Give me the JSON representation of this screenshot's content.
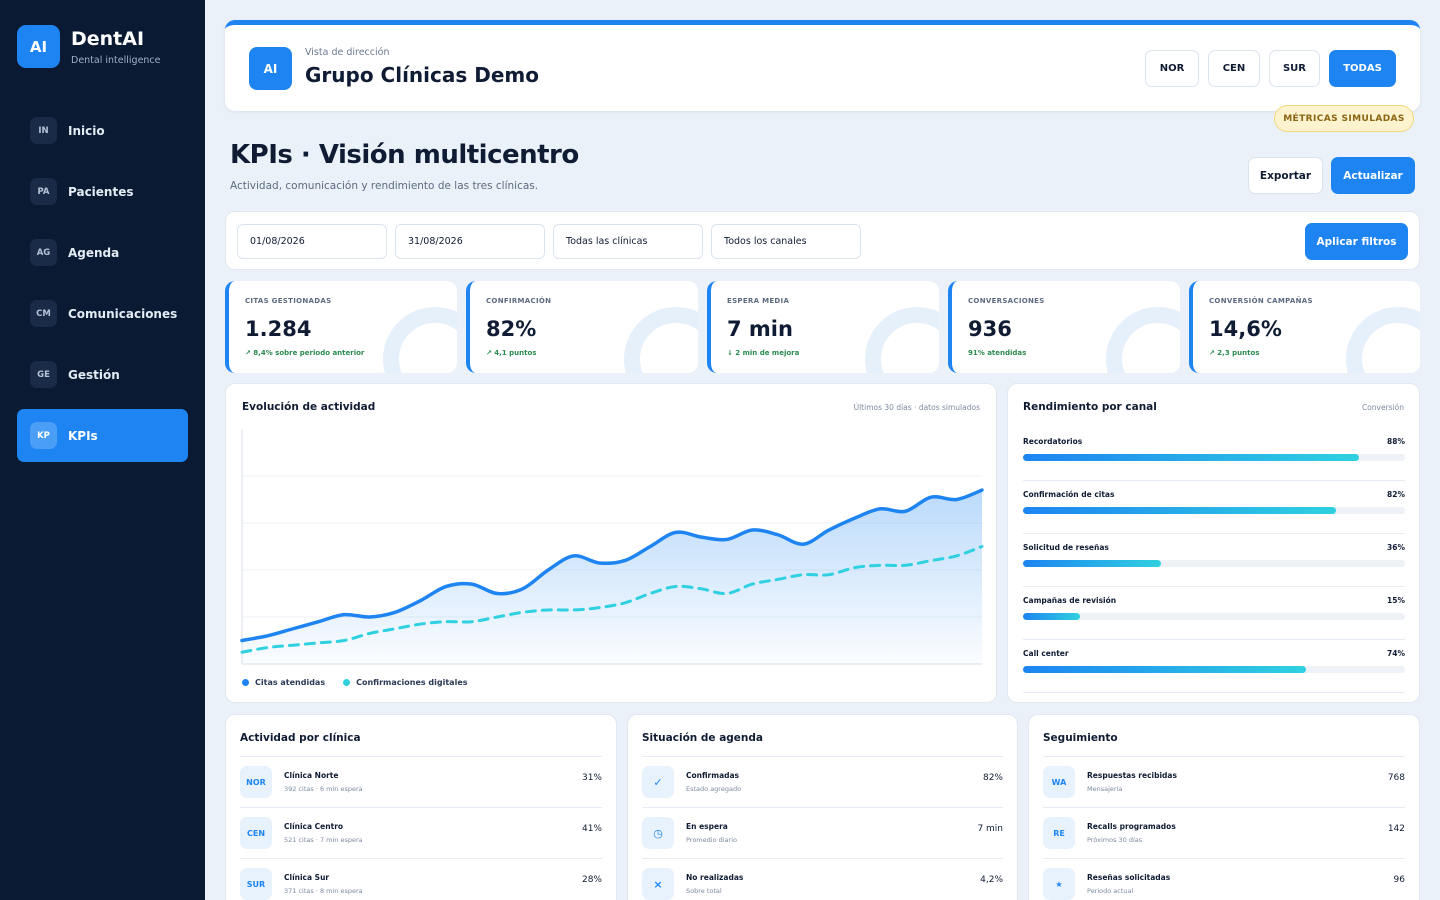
{
  "brand": {
    "logo": "AI",
    "name": "DentAI",
    "tagline": "Dental intelligence"
  },
  "nav": [
    {
      "code": "IN",
      "label": "Inicio"
    },
    {
      "code": "PA",
      "label": "Pacientes"
    },
    {
      "code": "AG",
      "label": "Agenda"
    },
    {
      "code": "CM",
      "label": "Comunicaciones"
    },
    {
      "code": "GE",
      "label": "Gestión"
    },
    {
      "code": "KP",
      "label": "KPIs",
      "active": true
    }
  ],
  "header": {
    "logo": "AI",
    "subtitle": "Vista de dirección",
    "title": "Grupo Clínicas Demo",
    "regions": [
      "NOR",
      "CEN",
      "SUR",
      "TODAS"
    ],
    "active_region": "TODAS",
    "sim_badge": "MÉTRICAS SIMULADAS"
  },
  "page": {
    "title": "KPIs · Visión multicentro",
    "subtitle": "Actividad, comunicación y rendimiento de las tres clínicas.",
    "export_label": "Exportar",
    "refresh_label": "Actualizar"
  },
  "filters": {
    "date_from": "01/08/2026",
    "date_to": "31/08/2026",
    "clinic": "Todas las clínicas",
    "channel": "Todos los canales",
    "apply_label": "Aplicar filtros"
  },
  "kpis": [
    {
      "label": "CITAS GESTIONADAS",
      "value": "1.284",
      "delta": "↗ 8,4% sobre periodo anterior"
    },
    {
      "label": "CONFIRMACIÓN",
      "value": "82%",
      "delta": "↗ 4,1 puntos"
    },
    {
      "label": "ESPERA MEDIA",
      "value": "7 min",
      "delta": "↓ 2 min de mejora"
    },
    {
      "label": "CONVERSACIONES",
      "value": "936",
      "delta": "91% atendidas"
    },
    {
      "label": "CONVERSIÓN CAMPAÑAS",
      "value": "14,6%",
      "delta": "↗ 2,3 puntos"
    }
  ],
  "activity": {
    "title": "Evolución de actividad",
    "note": "Últimos 30 días · datos simulados"
  },
  "chart_data": {
    "type": "area",
    "x": [
      1,
      2,
      3,
      4,
      5,
      6,
      7,
      8,
      9,
      10,
      11,
      12,
      13,
      14,
      15,
      16,
      17,
      18,
      19,
      20,
      21,
      22,
      23,
      24,
      25,
      26,
      27,
      28,
      29,
      30
    ],
    "series": [
      {
        "name": "Citas atendidas",
        "color": "#1d84f2",
        "style": "solid-area",
        "values": [
          10,
          12,
          15,
          18,
          21,
          20,
          22,
          27,
          33,
          34,
          30,
          32,
          40,
          46,
          43,
          44,
          50,
          56,
          54,
          53,
          57,
          55,
          51,
          57,
          62,
          66,
          65,
          71,
          70,
          74
        ]
      },
      {
        "name": "Confirmaciones digitales",
        "color": "#2fd1e0",
        "style": "dashed",
        "values": [
          5,
          7,
          8,
          9,
          10,
          13,
          15,
          17,
          18,
          18,
          20,
          22,
          23,
          23,
          24,
          26,
          30,
          33,
          32,
          30,
          34,
          36,
          38,
          38,
          41,
          42,
          42,
          44,
          46,
          50
        ]
      }
    ],
    "ylim": [
      0,
      100
    ],
    "grid": true
  },
  "channels": {
    "title": "Rendimiento por canal",
    "note": "Conversión",
    "items": [
      {
        "name": "Recordatorios",
        "pct_label": "88%",
        "value": 0.88
      },
      {
        "name": "Confirmación de citas",
        "pct_label": "82%",
        "value": 0.82
      },
      {
        "name": "Solicitud de reseñas",
        "pct_label": "36%",
        "value": 0.36
      },
      {
        "name": "Campañas de revisión",
        "pct_label": "15%",
        "value": 0.15
      },
      {
        "name": "Call center",
        "pct_label": "74%",
        "value": 0.74
      }
    ]
  },
  "clinics": {
    "title": "Actividad por clínica",
    "rows": [
      {
        "icon": "NOR",
        "name": "Clínica Norte",
        "sub": "392 citas · 6 min espera",
        "value": "31%"
      },
      {
        "icon": "CEN",
        "name": "Clínica Centro",
        "sub": "521 citas · 7 min espera",
        "value": "41%"
      },
      {
        "icon": "SUR",
        "name": "Clínica Sur",
        "sub": "371 citas · 8 min espera",
        "value": "28%"
      }
    ]
  },
  "agenda": {
    "title": "Situación de agenda",
    "rows": [
      {
        "icon": "✓",
        "icon_name": "check-icon",
        "name": "Confirmadas",
        "sub": "Estado agregado",
        "value": "82%"
      },
      {
        "icon": "◷",
        "icon_name": "clock-icon",
        "name": "En espera",
        "sub": "Promedio diario",
        "value": "7 min"
      },
      {
        "icon": "×",
        "icon_name": "cross-icon",
        "name": "No realizadas",
        "sub": "Sobre total",
        "value": "4,2%"
      }
    ]
  },
  "followup": {
    "title": "Seguimiento",
    "rows": [
      {
        "icon": "WA",
        "name": "Respuestas recibidas",
        "sub": "Mensajería",
        "value": "768"
      },
      {
        "icon": "RE",
        "name": "Recalls programados",
        "sub": "Próximos 30 días",
        "value": "142"
      },
      {
        "icon": "★",
        "icon_name": "star-icon",
        "name": "Reseñas solicitadas",
        "sub": "Periodo actual",
        "value": "96"
      }
    ]
  }
}
